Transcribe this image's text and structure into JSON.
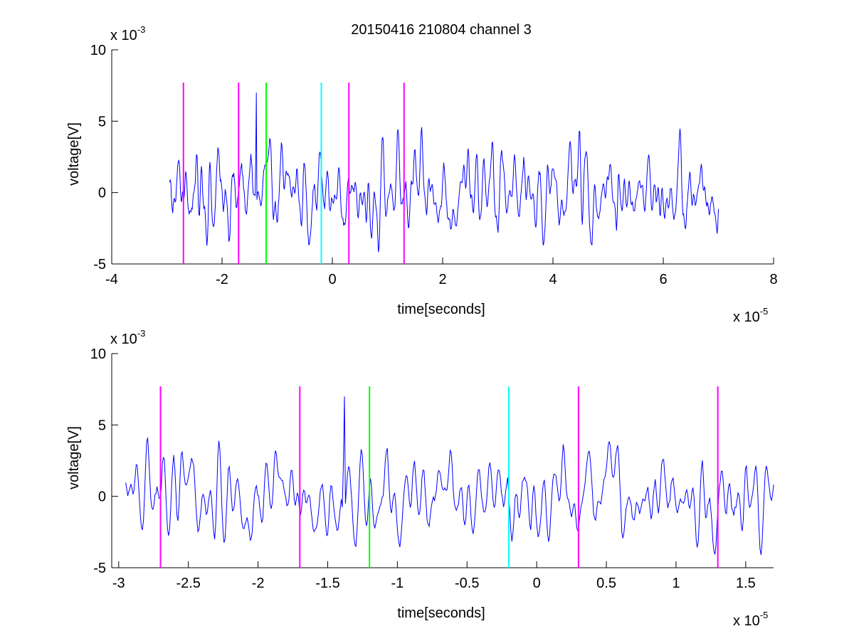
{
  "figure_title": "20150416 210804 channel 3",
  "chart_data": [
    {
      "type": "line",
      "title": "20150416 210804 channel 3",
      "xlabel": "time[seconds]",
      "ylabel": "voltage[V]",
      "x_exponent_label": "x 10",
      "x_exponent": "-5",
      "y_exponent_label": "x 10",
      "y_exponent": "-3",
      "xlim": [
        -4,
        8
      ],
      "ylim": [
        -5,
        10
      ],
      "x_ticks": [
        -4,
        -2,
        0,
        2,
        4,
        6,
        8
      ],
      "x_tick_labels": [
        "-4",
        "-2",
        "0",
        "2",
        "4",
        "6",
        "8"
      ],
      "y_ticks": [
        -5,
        0,
        5,
        10
      ],
      "y_tick_labels": [
        "-5",
        "0",
        "5",
        "10"
      ],
      "grid": false,
      "trace_color": "#0000ff",
      "signal_x_range": [
        -2.95,
        7.0
      ],
      "signal_peak": {
        "x": -1.38,
        "y": 7.0
      },
      "markers": [
        {
          "x": -2.7,
          "color": "#ff00ff"
        },
        {
          "x": -1.7,
          "color": "#ff00ff"
        },
        {
          "x": -1.2,
          "color": "#00ff00"
        },
        {
          "x": -0.2,
          "color": "#00ffff"
        },
        {
          "x": 0.3,
          "color": "#ff00ff"
        },
        {
          "x": 1.3,
          "color": "#ff00ff"
        }
      ],
      "marker_range": [
        -5,
        7.7
      ]
    },
    {
      "type": "line",
      "xlabel": "time[seconds]",
      "ylabel": "voltage[V]",
      "x_exponent_label": "x 10",
      "x_exponent": "-5",
      "y_exponent_label": "x 10",
      "y_exponent": "-3",
      "xlim": [
        -3.05,
        1.7
      ],
      "ylim": [
        -5,
        10
      ],
      "x_ticks": [
        -3,
        -2.5,
        -2,
        -1.5,
        -1,
        -0.5,
        0,
        0.5,
        1,
        1.5
      ],
      "x_tick_labels": [
        "-3",
        "-2.5",
        "-2",
        "-1.5",
        "-1",
        "-0.5",
        "0",
        "0.5",
        "1",
        "1.5"
      ],
      "y_ticks": [
        -5,
        0,
        5,
        10
      ],
      "y_tick_labels": [
        "-5",
        "0",
        "5",
        "10"
      ],
      "grid": false,
      "trace_color": "#0000ff",
      "signal_x_range": [
        -2.95,
        1.7
      ],
      "signal_peak": {
        "x": -1.38,
        "y": 7.0
      },
      "markers": [
        {
          "x": -2.7,
          "color": "#ff00ff"
        },
        {
          "x": -1.7,
          "color": "#ff00ff"
        },
        {
          "x": -1.2,
          "color": "#00ff00"
        },
        {
          "x": -0.2,
          "color": "#00ffff"
        },
        {
          "x": 0.3,
          "color": "#ff00ff"
        },
        {
          "x": 1.3,
          "color": "#ff00ff"
        }
      ],
      "marker_range": [
        -5,
        7.7
      ]
    }
  ]
}
